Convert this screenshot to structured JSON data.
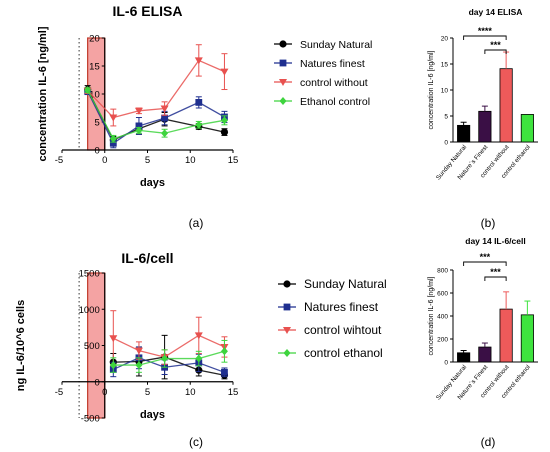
{
  "panel_letters": [
    "(a)",
    "(b)",
    "(c)",
    "(d)"
  ],
  "colors": {
    "sunday": "#000000",
    "natures": "#1f2f8f",
    "control": "#e8514f",
    "ethanol": "#3ed43e",
    "bar_sunday": "#000000",
    "bar_natures": "#3a0f45",
    "bar_control": "#ee5a5a",
    "bar_ethanol": "#3ee33e",
    "shade": "#f4a3a3"
  },
  "chart_data": [
    {
      "type": "line",
      "title": "IL-6 ELISA",
      "xlabel": "days",
      "ylabel": "concentration IL-6 [ng/ml]",
      "xlim": [
        -5,
        15
      ],
      "ylim": [
        0,
        20
      ],
      "xticks": [
        "-5",
        "0",
        "5",
        "10",
        "15"
      ],
      "yticks": [
        "0",
        "5",
        "10",
        "15",
        "20"
      ],
      "shaded_region": [
        -2,
        0
      ],
      "dotted_line_x": -3,
      "series": [
        {
          "name": "Sunday Natural",
          "color": "#000000",
          "marker": "circle",
          "x": [
            -2,
            1,
            4,
            7,
            11,
            14
          ],
          "y": [
            10.8,
            1.8,
            3.8,
            5.5,
            4.2,
            3.2
          ],
          "err": [
            0.7,
            0.6,
            1.0,
            1.2,
            0.5,
            0.6
          ]
        },
        {
          "name": "Natures finest",
          "color": "#1f2f8f",
          "marker": "square",
          "x": [
            -2,
            1,
            4,
            7,
            11,
            14
          ],
          "y": [
            10.5,
            1.2,
            4.3,
            5.7,
            8.5,
            5.9
          ],
          "err": [
            0.6,
            0.8,
            1.5,
            1.2,
            1.0,
            1.0
          ]
        },
        {
          "name": "control without",
          "color": "#e8514f",
          "marker": "triangle-down",
          "x": [
            -2,
            1,
            4,
            7,
            11,
            14
          ],
          "y": [
            10.6,
            5.8,
            7.0,
            7.4,
            16.0,
            14.0
          ],
          "err": [
            0.5,
            1.5,
            0.5,
            1.2,
            2.8,
            3.2
          ]
        },
        {
          "name": "Ethanol control",
          "color": "#3ed43e",
          "marker": "diamond",
          "x": [
            -2,
            1,
            4,
            7,
            11,
            14
          ],
          "y": [
            10.7,
            2.0,
            3.5,
            3.0,
            4.5,
            5.3
          ],
          "err": [
            0.4,
            0.6,
            0.5,
            0.7,
            0.6,
            0.8
          ]
        }
      ]
    },
    {
      "type": "bar",
      "title": "day 14 ELISA",
      "ylabel": "concentration IL-6 [ng/ml]",
      "ylim": [
        0,
        20
      ],
      "yticks": [
        "0",
        "5",
        "10",
        "15",
        "20"
      ],
      "categories": [
        "Sunday Natural",
        "Nature`s Finest",
        "control without",
        "control ethanol"
      ],
      "values": [
        3.2,
        5.9,
        14.1,
        5.3
      ],
      "err": [
        0.6,
        1.0,
        3.2,
        0
      ],
      "significance": [
        {
          "from": 0,
          "to": 2,
          "label": "****"
        },
        {
          "from": 1,
          "to": 2,
          "label": "***"
        }
      ]
    },
    {
      "type": "line",
      "title": "IL-6/cell",
      "xlabel": "days",
      "ylabel": "ng IL-6/10^6 cells",
      "xlim": [
        -5,
        15
      ],
      "ylim": [
        -500,
        1500
      ],
      "xticks": [
        "-5",
        "0",
        "5",
        "10",
        "15"
      ],
      "yticks": [
        "-500",
        "0",
        "500",
        "1000",
        "1500"
      ],
      "shaded_region": [
        -2,
        0
      ],
      "dotted_line_x": -3,
      "series": [
        {
          "name": "Sunday Natural",
          "color": "#000000",
          "marker": "circle",
          "x": [
            1,
            4,
            7,
            11,
            14
          ],
          "y": [
            270,
            280,
            340,
            160,
            90
          ],
          "err": [
            120,
            200,
            300,
            80,
            50
          ]
        },
        {
          "name": "Natures finest",
          "color": "#1f2f8f",
          "marker": "square",
          "x": [
            1,
            4,
            7,
            11,
            14
          ],
          "y": [
            170,
            330,
            200,
            260,
            130
          ],
          "err": [
            100,
            150,
            100,
            120,
            60
          ]
        },
        {
          "name": "control wihtout",
          "color": "#e8514f",
          "marker": "triangle-down",
          "x": [
            1,
            4,
            7,
            11,
            14
          ],
          "y": [
            600,
            430,
            340,
            640,
            480
          ],
          "err": [
            380,
            120,
            100,
            250,
            140
          ]
        },
        {
          "name": "control ethanol",
          "color": "#3ed43e",
          "marker": "diamond",
          "x": [
            1,
            4,
            7,
            11,
            14
          ],
          "y": [
            230,
            230,
            320,
            320,
            420
          ],
          "err": [
            100,
            100,
            120,
            100,
            150
          ]
        }
      ]
    },
    {
      "type": "bar",
      "title": "day 14 IL-6/cell",
      "ylabel": "concentration IL-6 [ng/ml]",
      "ylim": [
        0,
        800
      ],
      "yticks": [
        "0",
        "200",
        "400",
        "600",
        "800"
      ],
      "categories": [
        "Sunday Natural",
        "Nature`s Finest",
        "control without",
        "control ethanol"
      ],
      "values": [
        80,
        130,
        460,
        410
      ],
      "err": [
        20,
        35,
        150,
        120
      ],
      "significance": [
        {
          "from": 0,
          "to": 2,
          "label": "***"
        },
        {
          "from": 1,
          "to": 2,
          "label": "***"
        }
      ]
    }
  ]
}
